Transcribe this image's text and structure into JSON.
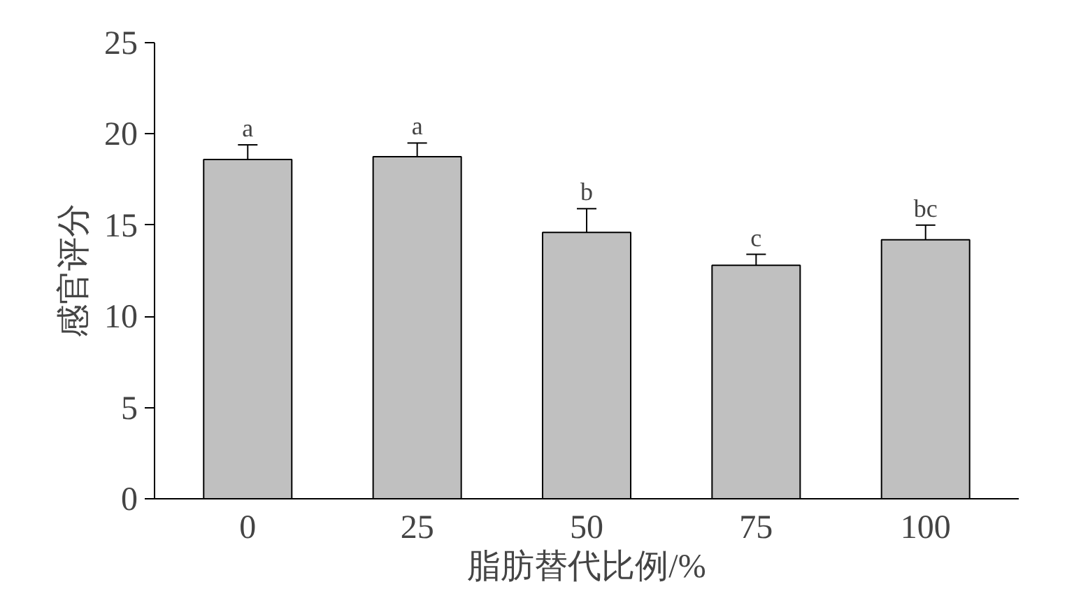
{
  "chart_data": {
    "type": "bar",
    "xlabel": "脂肪替代比例/%",
    "ylabel": "感官评分",
    "categories": [
      "0",
      "25",
      "50",
      "75",
      "100"
    ],
    "values": [
      18.6,
      18.75,
      14.6,
      12.8,
      14.2
    ],
    "errors": [
      0.8,
      0.75,
      1.3,
      0.6,
      0.8
    ],
    "color": "#c0c0c0",
    "ylim": [
      0,
      25
    ],
    "yticks": [
      0,
      5,
      10,
      15,
      20,
      25
    ],
    "grid": false,
    "annotations": [
      {
        "text": "a",
        "x": "0",
        "y": 19.4
      },
      {
        "text": "a",
        "x": "25",
        "y": 19.5
      },
      {
        "text": "b",
        "x": "50",
        "y": 15.9
      },
      {
        "text": "c",
        "x": "75",
        "y": 13.4
      },
      {
        "text": "bc",
        "x": "100",
        "y": 15.0
      }
    ]
  }
}
